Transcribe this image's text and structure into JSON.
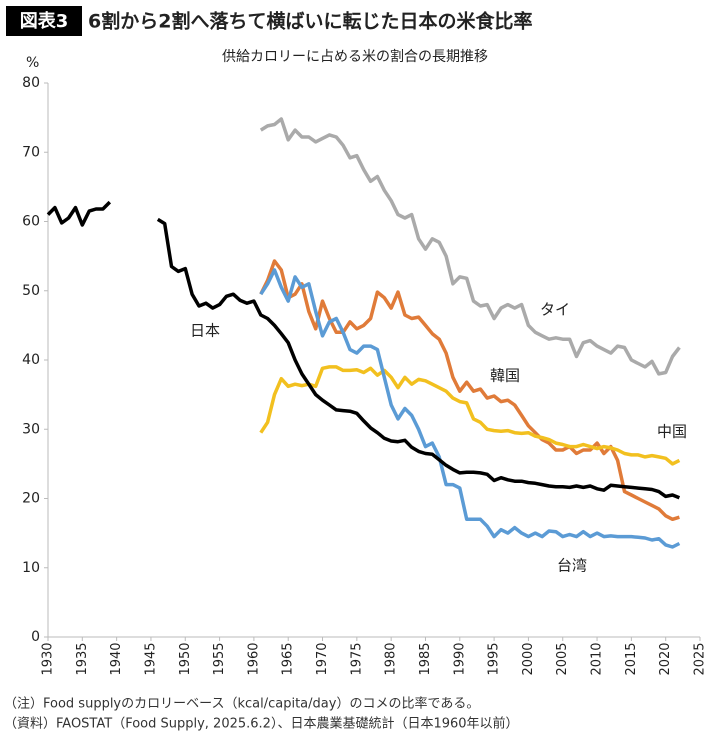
{
  "chart_data": {
    "type": "line",
    "figure_label": "図表3",
    "title": "6割から2割へ落ちて横ばいに転じた日本の米食比率",
    "subtitle": "供給カロリーに占める米の割合の長期推移",
    "ylabel": "%",
    "notes": [
      "（注）Food supplyのカロリーベース（kcal/capita/day）のコメの比率である。",
      "（資料）FAOSTAT（Food Supply, 2025.6.2）、日本農業基礎統計（日本1960年以前）"
    ],
    "xlim": [
      1930,
      2025
    ],
    "xticks": [
      1930,
      1935,
      1940,
      1945,
      1950,
      1955,
      1960,
      1965,
      1970,
      1975,
      1980,
      1985,
      1990,
      1995,
      2000,
      2005,
      2010,
      2015,
      2020,
      2025
    ],
    "ylim": [
      0,
      80
    ],
    "yticks": [
      0,
      10,
      20,
      30,
      40,
      50,
      60,
      70,
      80
    ],
    "grid": false,
    "x": [
      1930,
      1931,
      1932,
      1933,
      1934,
      1935,
      1936,
      1937,
      1938,
      1939,
      1940,
      1941,
      1942,
      1943,
      1944,
      1945,
      1946,
      1947,
      1948,
      1949,
      1950,
      1951,
      1952,
      1953,
      1954,
      1955,
      1956,
      1957,
      1958,
      1959,
      1960,
      1961,
      1962,
      1963,
      1964,
      1965,
      1966,
      1967,
      1968,
      1969,
      1970,
      1971,
      1972,
      1973,
      1974,
      1975,
      1976,
      1977,
      1978,
      1979,
      1980,
      1981,
      1982,
      1983,
      1984,
      1985,
      1986,
      1987,
      1988,
      1989,
      1990,
      1991,
      1992,
      1993,
      1994,
      1995,
      1996,
      1997,
      1998,
      1999,
      2000,
      2001,
      2002,
      2003,
      2004,
      2005,
      2006,
      2007,
      2008,
      2009,
      2010,
      2011,
      2012,
      2013,
      2014,
      2015,
      2016,
      2017,
      2018,
      2019,
      2020,
      2021,
      2022
    ],
    "series": [
      {
        "name": "タイ",
        "color": "#aaaaaa",
        "values": [
          null,
          null,
          null,
          null,
          null,
          null,
          null,
          null,
          null,
          null,
          null,
          null,
          null,
          null,
          null,
          null,
          null,
          null,
          null,
          null,
          null,
          null,
          null,
          null,
          null,
          null,
          null,
          null,
          null,
          null,
          null,
          73.2,
          73.8,
          74,
          74.8,
          71.8,
          73.2,
          72.2,
          72.2,
          71.5,
          72,
          72.5,
          72.2,
          71,
          69.2,
          69.5,
          67.5,
          65.8,
          66.5,
          64.5,
          63,
          61,
          60.5,
          61,
          57.5,
          56,
          57.5,
          57,
          55,
          51,
          52,
          51.8,
          48.5,
          47.8,
          48,
          46,
          47.5,
          48,
          47.5,
          48,
          45,
          44,
          43.5,
          43,
          43.2,
          43,
          43,
          40.5,
          42.5,
          42.8,
          42,
          41.5,
          41,
          42,
          41.8,
          40,
          39.5,
          39,
          39.8,
          38,
          38.2,
          40.5,
          41.8
        ]
      },
      {
        "name": "韓国",
        "color": "#e07b39",
        "values": [
          null,
          null,
          null,
          null,
          null,
          null,
          null,
          null,
          null,
          null,
          null,
          null,
          null,
          null,
          null,
          null,
          null,
          null,
          null,
          null,
          null,
          null,
          null,
          null,
          null,
          null,
          null,
          null,
          null,
          null,
          null,
          49.5,
          51.5,
          54.3,
          53,
          49,
          49.5,
          51,
          47,
          44.5,
          48.5,
          46,
          44,
          44,
          45.5,
          44.5,
          45,
          46,
          49.8,
          49,
          47.5,
          49.8,
          46.5,
          46,
          46.2,
          45,
          43.8,
          43,
          41,
          37.5,
          35.5,
          36.8,
          35.5,
          35.8,
          34.5,
          34.8,
          34,
          34.2,
          33.5,
          32,
          30.5,
          29.5,
          28.5,
          28,
          27,
          27,
          27.5,
          26.5,
          27,
          27,
          28,
          26.5,
          27.5,
          25.5,
          21,
          20.5,
          20,
          19.5,
          19,
          18.5,
          17.5,
          17,
          17.3
        ]
      },
      {
        "name": "中国",
        "color": "#f2c01f",
        "values": [
          null,
          null,
          null,
          null,
          null,
          null,
          null,
          null,
          null,
          null,
          null,
          null,
          null,
          null,
          null,
          null,
          null,
          null,
          null,
          null,
          null,
          null,
          null,
          null,
          null,
          null,
          null,
          null,
          null,
          null,
          null,
          29.5,
          31,
          35,
          37.3,
          36.2,
          36.5,
          36.3,
          36.5,
          36.2,
          38.8,
          39,
          39,
          38.5,
          38.5,
          38.6,
          38.2,
          38.8,
          37.8,
          38.5,
          37.5,
          36,
          37.5,
          36.5,
          37.2,
          37,
          36.5,
          36,
          35.5,
          34.5,
          34,
          33.8,
          31.5,
          31,
          30,
          29.8,
          29.7,
          29.8,
          29.5,
          29.4,
          29.5,
          29,
          28.8,
          28.5,
          28,
          27.8,
          27.5,
          27.5,
          27.8,
          27.5,
          27.2,
          27.5,
          27.3,
          27,
          26.5,
          26.3,
          26.3,
          26,
          26.2,
          26,
          25.8,
          25,
          25.5
        ]
      },
      {
        "name": "台湾",
        "color": "#5b9bd5",
        "values": [
          null,
          null,
          null,
          null,
          null,
          null,
          null,
          null,
          null,
          null,
          null,
          null,
          null,
          null,
          null,
          null,
          null,
          null,
          null,
          null,
          null,
          null,
          null,
          null,
          null,
          null,
          null,
          null,
          null,
          null,
          null,
          49.5,
          51,
          53,
          50.5,
          48.5,
          52,
          50.5,
          51,
          47,
          43.5,
          45.5,
          46,
          44,
          41.5,
          41,
          42,
          42,
          41.5,
          37.5,
          33.5,
          31.5,
          33,
          32,
          30,
          27.5,
          28,
          26,
          22,
          22,
          21.5,
          17,
          17,
          17,
          16,
          14.5,
          15.5,
          15,
          15.8,
          15,
          14.5,
          15,
          14.5,
          15.3,
          15.2,
          14.5,
          14.8,
          14.5,
          15.2,
          14.5,
          15,
          14.5,
          14.6,
          14.5,
          14.5,
          14.5,
          14.4,
          14.3,
          14,
          14.2,
          13.3,
          13,
          13.5
        ]
      },
      {
        "name": "日本",
        "color": "#000000",
        "values": [
          61,
          62,
          59.8,
          60.5,
          62,
          59.5,
          61.5,
          61.8,
          61.8,
          62.8,
          null,
          null,
          null,
          null,
          null,
          null,
          60.3,
          59.7,
          53.5,
          52.8,
          53.2,
          49.5,
          47.8,
          48.2,
          47.5,
          48,
          49.2,
          49.5,
          48.6,
          48.2,
          48.5,
          46.5,
          46,
          45,
          43.8,
          42.5,
          40,
          38,
          36.5,
          35,
          34.2,
          33.5,
          32.8,
          32.7,
          32.6,
          32.3,
          31.2,
          30.2,
          29.5,
          28.7,
          28.3,
          28.2,
          28.4,
          27.4,
          26.8,
          26.5,
          26.4,
          25.6,
          24.8,
          24.2,
          23.7,
          23.8,
          23.8,
          23.7,
          23.5,
          22.6,
          23,
          22.7,
          22.5,
          22.5,
          22.3,
          22.2,
          22,
          21.8,
          21.7,
          21.7,
          21.6,
          21.8,
          21.6,
          21.8,
          21.4,
          21.2,
          21.9,
          21.8,
          21.7,
          21.6,
          21.5,
          21.4,
          21.3,
          21,
          20.3,
          20.5,
          20.1
        ]
      }
    ]
  }
}
